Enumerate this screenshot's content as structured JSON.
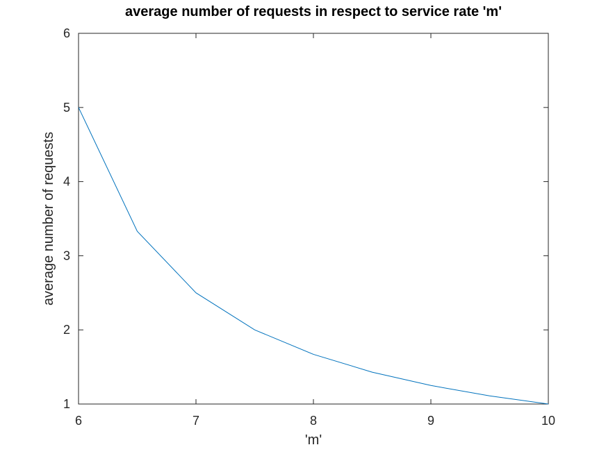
{
  "chart_data": {
    "type": "line",
    "title": "average number of requests in respect to service rate 'm'",
    "xlabel": "'m'",
    "ylabel": "average number of requests",
    "xlim": [
      6,
      10
    ],
    "ylim": [
      1,
      6
    ],
    "xticks": [
      "6",
      "7",
      "8",
      "9",
      "10"
    ],
    "yticks": [
      "1",
      "2",
      "3",
      "4",
      "5",
      "6"
    ],
    "grid": false,
    "series": [
      {
        "x": [
          6,
          6.5,
          7,
          7.5,
          8,
          8.5,
          9,
          9.5,
          10
        ],
        "y": [
          5,
          3.33,
          2.5,
          2,
          1.67,
          1.43,
          1.25,
          1.11,
          1
        ],
        "color": "#0072BD"
      }
    ]
  }
}
